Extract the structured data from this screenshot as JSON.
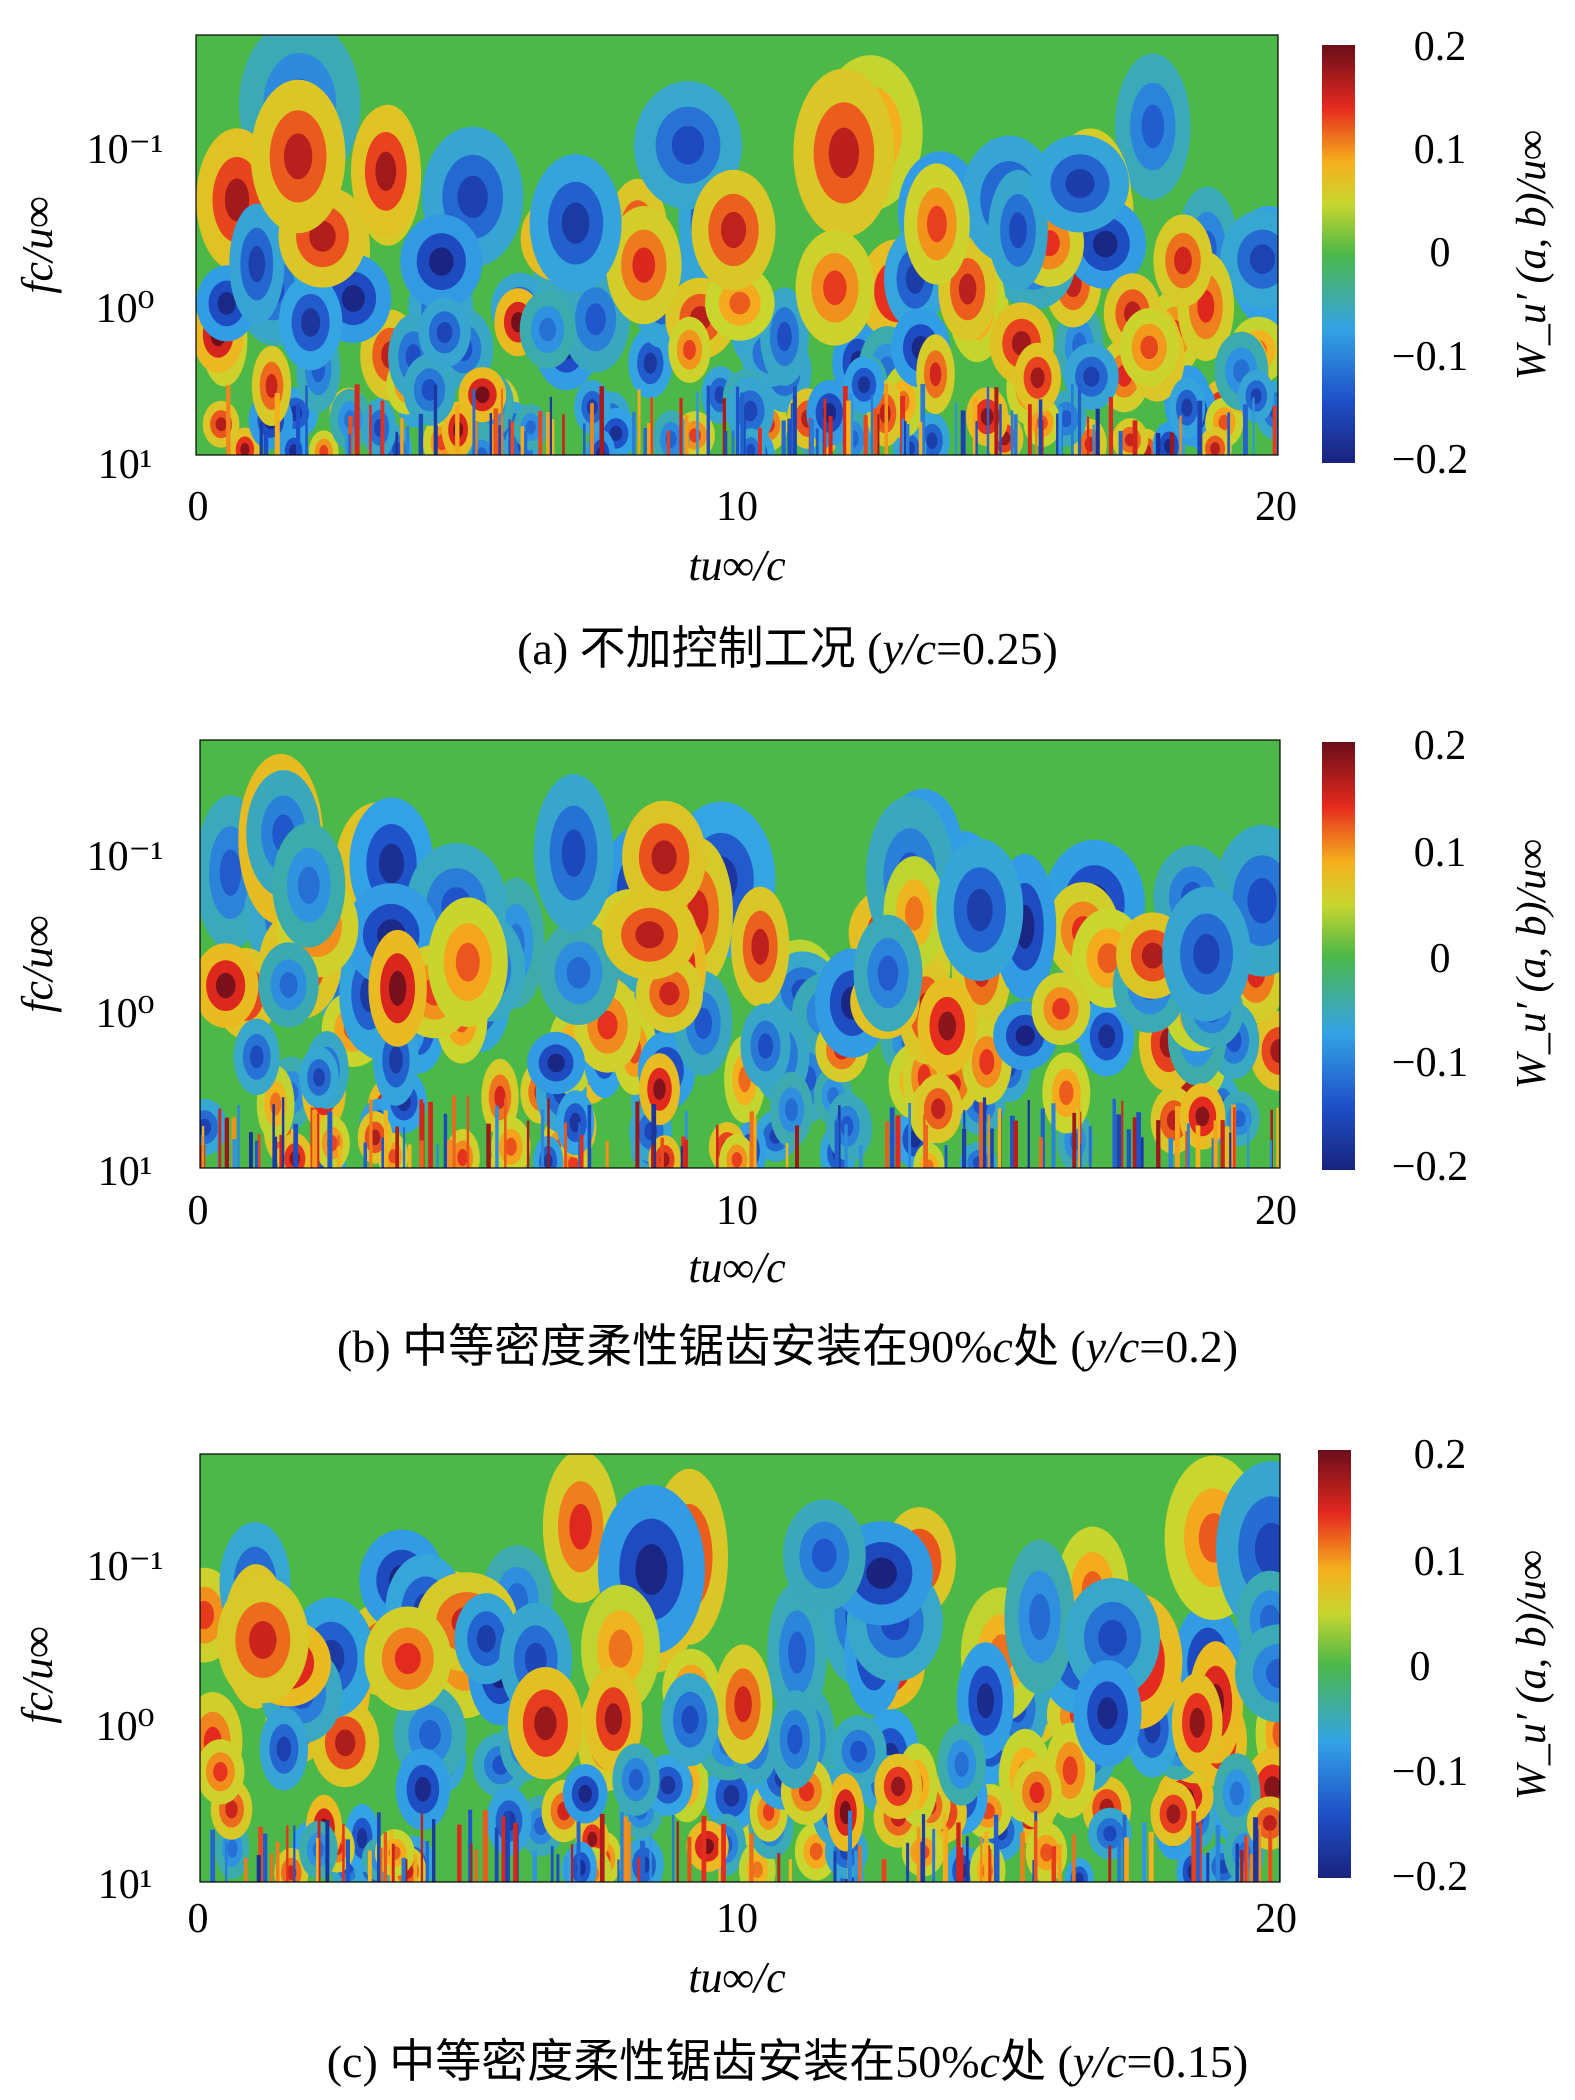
{
  "chart_data": [
    {
      "type": "heatmap",
      "caption": "(a) 不加控制工况 (y/c=0.25)",
      "caption_prefix": "(a) 不加控制工况 (",
      "caption_var": "y/c",
      "caption_suffix": "=0.25)",
      "xlabel": "tu∞/c",
      "ylabel": "fc/u∞",
      "xlim": [
        0,
        20
      ],
      "xticks": [
        "0",
        "10",
        "20"
      ],
      "yticks": [
        "10⁻¹",
        "10⁰",
        "10¹"
      ],
      "colorbar_label": "W_u′ (a, b)/u∞",
      "colorbar_ticks": [
        "0.2",
        "0.1",
        "0",
        "−0.1",
        "−0.2"
      ],
      "clim": [
        -0.2,
        0.2
      ],
      "colormap": "jet",
      "seed": 1
    },
    {
      "type": "heatmap",
      "caption": "(b) 中等密度柔性锯齿安装在90%c处 (y/c=0.2)",
      "caption_prefix": "(b) 中等密度柔性锯齿安装在90%",
      "caption_mid": "c",
      "caption_mid2": "处 (",
      "caption_var": "y/c",
      "caption_suffix": "=0.2)",
      "xlabel": "tu∞/c",
      "ylabel": "fc/u∞",
      "xlim": [
        0,
        20
      ],
      "xticks": [
        "0",
        "10",
        "20"
      ],
      "yticks": [
        "10⁻¹",
        "10⁰",
        "10¹"
      ],
      "colorbar_label": "W_u′ (a, b)/u∞",
      "colorbar_ticks": [
        "0.2",
        "0.1",
        "0",
        "−0.1",
        "−0.2"
      ],
      "clim": [
        -0.2,
        0.2
      ],
      "colormap": "jet",
      "seed": 2
    },
    {
      "type": "heatmap",
      "caption": "(c) 中等密度柔性锯齿安装在50%c处 (y/c=0.15)",
      "caption_prefix": "(c) 中等密度柔性锯齿安装在50%",
      "caption_mid": "c",
      "caption_mid2": "处 (",
      "caption_var": "y/c",
      "caption_suffix": "=0.15)",
      "xlabel": "tu∞/c",
      "ylabel": "fc/u∞",
      "xlim": [
        0,
        20
      ],
      "xticks": [
        "0",
        "10",
        "20"
      ],
      "yticks": [
        "10⁻¹",
        "10⁰",
        "10¹"
      ],
      "colorbar_label": "W_u′ (a, b)/u∞",
      "colorbar_ticks": [
        "0.2",
        "0.1",
        "0",
        "−0.1",
        "−0.2"
      ],
      "clim": [
        -0.2,
        0.2
      ],
      "colormap": "jet",
      "seed": 3
    }
  ]
}
